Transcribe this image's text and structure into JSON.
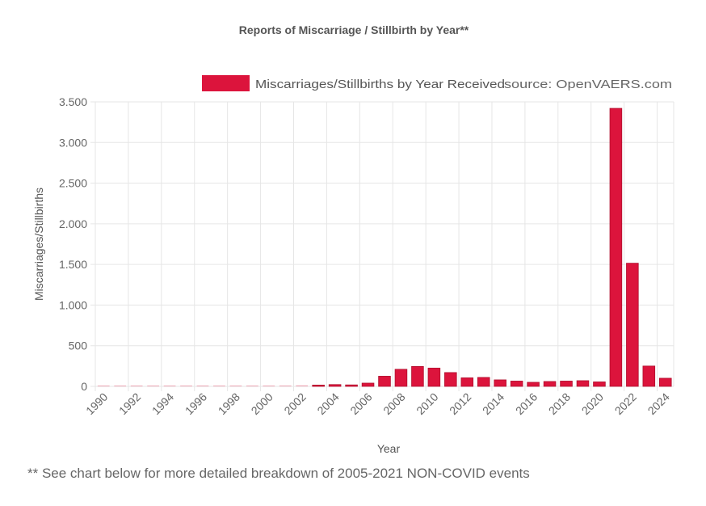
{
  "chart_data": {
    "type": "bar",
    "title": "Reports of Miscarriage / Stillbirth by Year**",
    "legend": {
      "label": "Miscarriages/Stillbirths by Year Received",
      "position": "top-right",
      "color": "#dc143c"
    },
    "source": "source: OpenVAERS.com",
    "xlabel": "Year",
    "ylabel": "Miscarriages/Stillbirths",
    "ylim": [
      0,
      3500
    ],
    "yticks": [
      0,
      500,
      1000,
      1500,
      2000,
      2500,
      3000,
      3500
    ],
    "ytick_labels": [
      "0",
      "500",
      "1.000",
      "1.500",
      "2.000",
      "2.500",
      "3.000",
      "3.500"
    ],
    "grid": true,
    "categories": [
      "1990",
      "1991",
      "1992",
      "1993",
      "1994",
      "1995",
      "1996",
      "1997",
      "1998",
      "1999",
      "2000",
      "2001",
      "2002",
      "2003",
      "2004",
      "2005",
      "2006",
      "2007",
      "2008",
      "2009",
      "2010",
      "2011",
      "2012",
      "2013",
      "2014",
      "2015",
      "2016",
      "2017",
      "2018",
      "2019",
      "2020",
      "2021",
      "2022",
      "2023",
      "2024"
    ],
    "xtick_labels": [
      "1990",
      "1992",
      "1994",
      "1996",
      "1998",
      "2000",
      "2002",
      "2004",
      "2006",
      "2008",
      "2010",
      "2012",
      "2014",
      "2016",
      "2018",
      "2020",
      "2022",
      "2024"
    ],
    "series": [
      {
        "name": "Miscarriages/Stillbirths by Year Received",
        "color": "#dc143c",
        "values": [
          2,
          4,
          2,
          2,
          4,
          4,
          10,
          8,
          8,
          2,
          8,
          10,
          12,
          16,
          22,
          18,
          40,
          125,
          210,
          245,
          225,
          170,
          105,
          110,
          80,
          65,
          50,
          60,
          65,
          70,
          55,
          3420,
          1515,
          250,
          100
        ]
      }
    ]
  },
  "footnote": "** See chart below for more detailed breakdown of 2005-2021 NON-COVID events"
}
